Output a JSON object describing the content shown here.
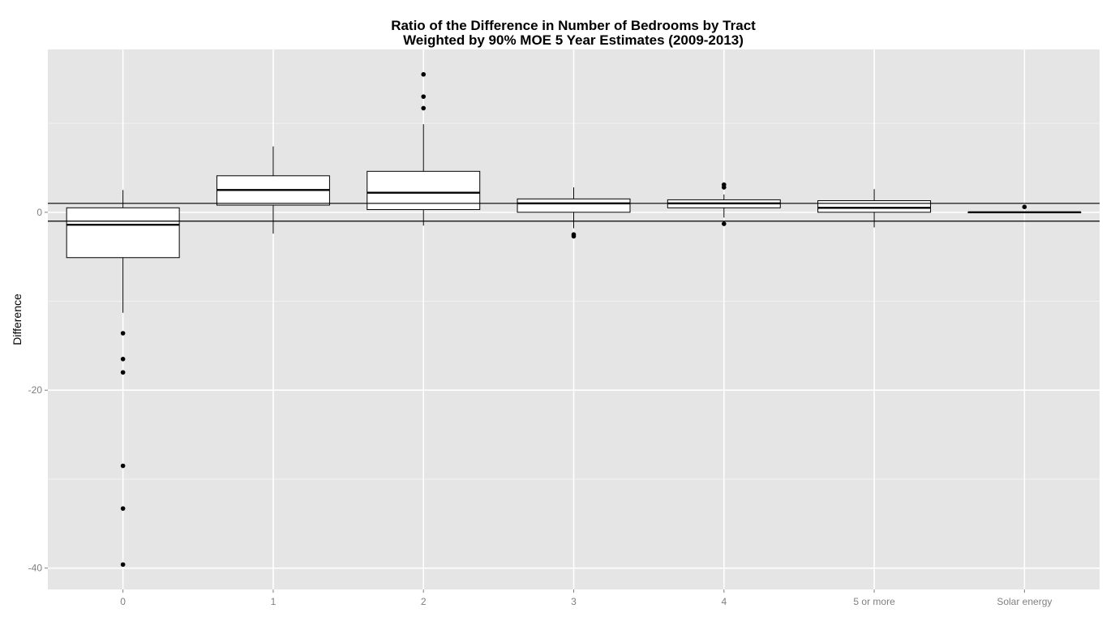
{
  "chart_data": {
    "type": "boxplot",
    "title": "Ratio of the Difference in Number of Bedrooms by Tract",
    "subtitle": "Weighted by 90% MOE 5 Year Estimates (2009-2013)",
    "xlabel": "",
    "ylabel": "Difference",
    "categories": [
      "0",
      "1",
      "2",
      "3",
      "4",
      "5 or more",
      "Solar energy"
    ],
    "y_ticks": [
      0,
      -20,
      -40
    ],
    "ylim": [
      -42.4,
      18.3
    ],
    "grid": true,
    "reference_lines": [
      1,
      -1
    ],
    "boxes": [
      {
        "category": "0",
        "whisker_low": -11.3,
        "q1": -5.1,
        "median": -1.4,
        "q3": 0.5,
        "whisker_high": 2.5,
        "outliers": [
          -13.6,
          -16.5,
          -18.0,
          -28.5,
          -33.3,
          -39.6
        ]
      },
      {
        "category": "1",
        "whisker_low": -2.4,
        "q1": 0.8,
        "median": 2.5,
        "q3": 4.1,
        "whisker_high": 7.4,
        "outliers": []
      },
      {
        "category": "2",
        "whisker_low": -1.5,
        "q1": 0.3,
        "median": 2.2,
        "q3": 4.6,
        "whisker_high": 9.9,
        "outliers": [
          11.7,
          13.0,
          15.5
        ]
      },
      {
        "category": "3",
        "whisker_low": -1.8,
        "q1": 0.0,
        "median": 1.0,
        "q3": 1.5,
        "whisker_high": 2.8,
        "outliers": [
          -2.5,
          -2.7
        ]
      },
      {
        "category": "4",
        "whisker_low": -0.6,
        "q1": 0.5,
        "median": 1.0,
        "q3": 1.4,
        "whisker_high": 2.0,
        "outliers": [
          -1.3,
          2.8,
          3.1
        ]
      },
      {
        "category": "5 or more",
        "whisker_low": -1.7,
        "q1": 0.0,
        "median": 0.5,
        "q3": 1.3,
        "whisker_high": 2.6,
        "outliers": []
      },
      {
        "category": "Solar energy",
        "whisker_low": 0.0,
        "q1": 0.0,
        "median": 0.0,
        "q3": 0.0,
        "whisker_high": 0.0,
        "outliers": [
          0.6
        ]
      }
    ],
    "colors": {
      "panel_bg": "#e5e5e5",
      "grid_major": "#ffffff",
      "grid_minor": "#f2f2f2",
      "box_fill": "#ffffff",
      "stroke": "#000000",
      "tick_text": "#7f7f7f"
    }
  }
}
